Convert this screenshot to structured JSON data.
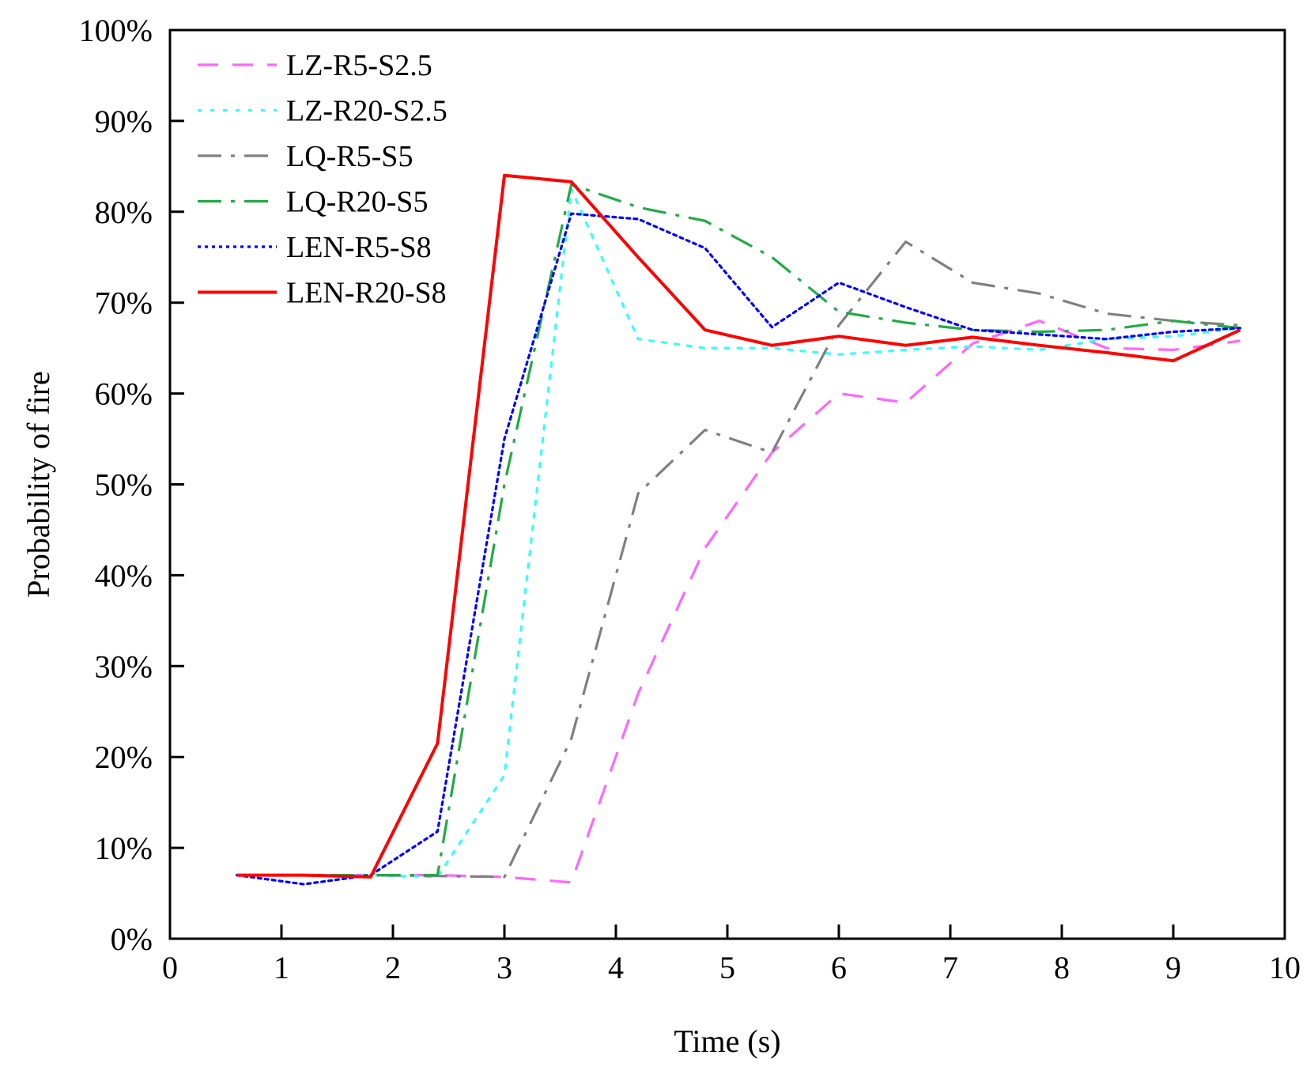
{
  "chart_data": {
    "type": "line",
    "title": "",
    "xlabel": "Time (s)",
    "ylabel": "Probability of fire",
    "xlim": [
      0,
      10
    ],
    "ylim": [
      0,
      100
    ],
    "x_ticks": [
      "0",
      "1",
      "2",
      "3",
      "4",
      "5",
      "6",
      "7",
      "8",
      "9",
      "10"
    ],
    "y_ticks": [
      "0%",
      "10%",
      "20%",
      "30%",
      "40%",
      "50%",
      "60%",
      "70%",
      "80%",
      "90%",
      "100%"
    ],
    "grid": false,
    "legend_position": "top-left",
    "x": [
      0.6,
      1.2,
      1.8,
      2.4,
      3.0,
      3.6,
      4.2,
      4.8,
      5.4,
      6.0,
      6.6,
      7.2,
      7.8,
      8.4,
      9.0,
      9.6
    ],
    "series": [
      {
        "name": "LZ-R5-S2.5",
        "color": "#ff66ff",
        "dash": "dashed",
        "values": [
          7,
          7,
          7,
          7,
          6.8,
          6.2,
          27,
          43,
          53.5,
          60,
          59,
          65.5,
          68,
          65,
          64.8,
          65.8
        ]
      },
      {
        "name": "LZ-R20-S2.5",
        "color": "#33ffff",
        "dash": "dotted",
        "values": [
          7,
          7,
          7,
          6.8,
          18,
          82.5,
          66,
          65,
          65,
          64.3,
          64.8,
          65.2,
          64.8,
          66,
          66.3,
          67.2
        ]
      },
      {
        "name": "LQ-R5-S5",
        "color": "#808080",
        "dash": "dashdot",
        "values": [
          7,
          7,
          7,
          6.9,
          6.8,
          22,
          49,
          56,
          53.5,
          67.5,
          76.7,
          72.2,
          71,
          68.8,
          68,
          67.5
        ]
      },
      {
        "name": "LQ-R20-S5",
        "color": "#22aa44",
        "dash": "dashdot",
        "values": [
          7,
          7,
          7,
          7,
          50,
          83,
          80.5,
          79,
          75,
          69,
          67.8,
          67,
          66.8,
          67,
          68,
          67.2
        ]
      },
      {
        "name": "LEN-R5-S8",
        "color": "#0000ff",
        "dash": "dotted-dense",
        "values": [
          7,
          6,
          7,
          11.8,
          55,
          79.8,
          79.2,
          76,
          67.3,
          72.2,
          69.5,
          67,
          66.5,
          66,
          66.8,
          67.2
        ]
      },
      {
        "name": "LEN-R20-S8",
        "color": "#ff0000",
        "dash": "solid",
        "values": [
          7,
          7,
          6.8,
          21.5,
          84,
          83.3,
          75,
          67,
          65.3,
          66.3,
          65.3,
          66.2,
          65.3,
          64.5,
          63.6,
          67
        ]
      }
    ]
  }
}
